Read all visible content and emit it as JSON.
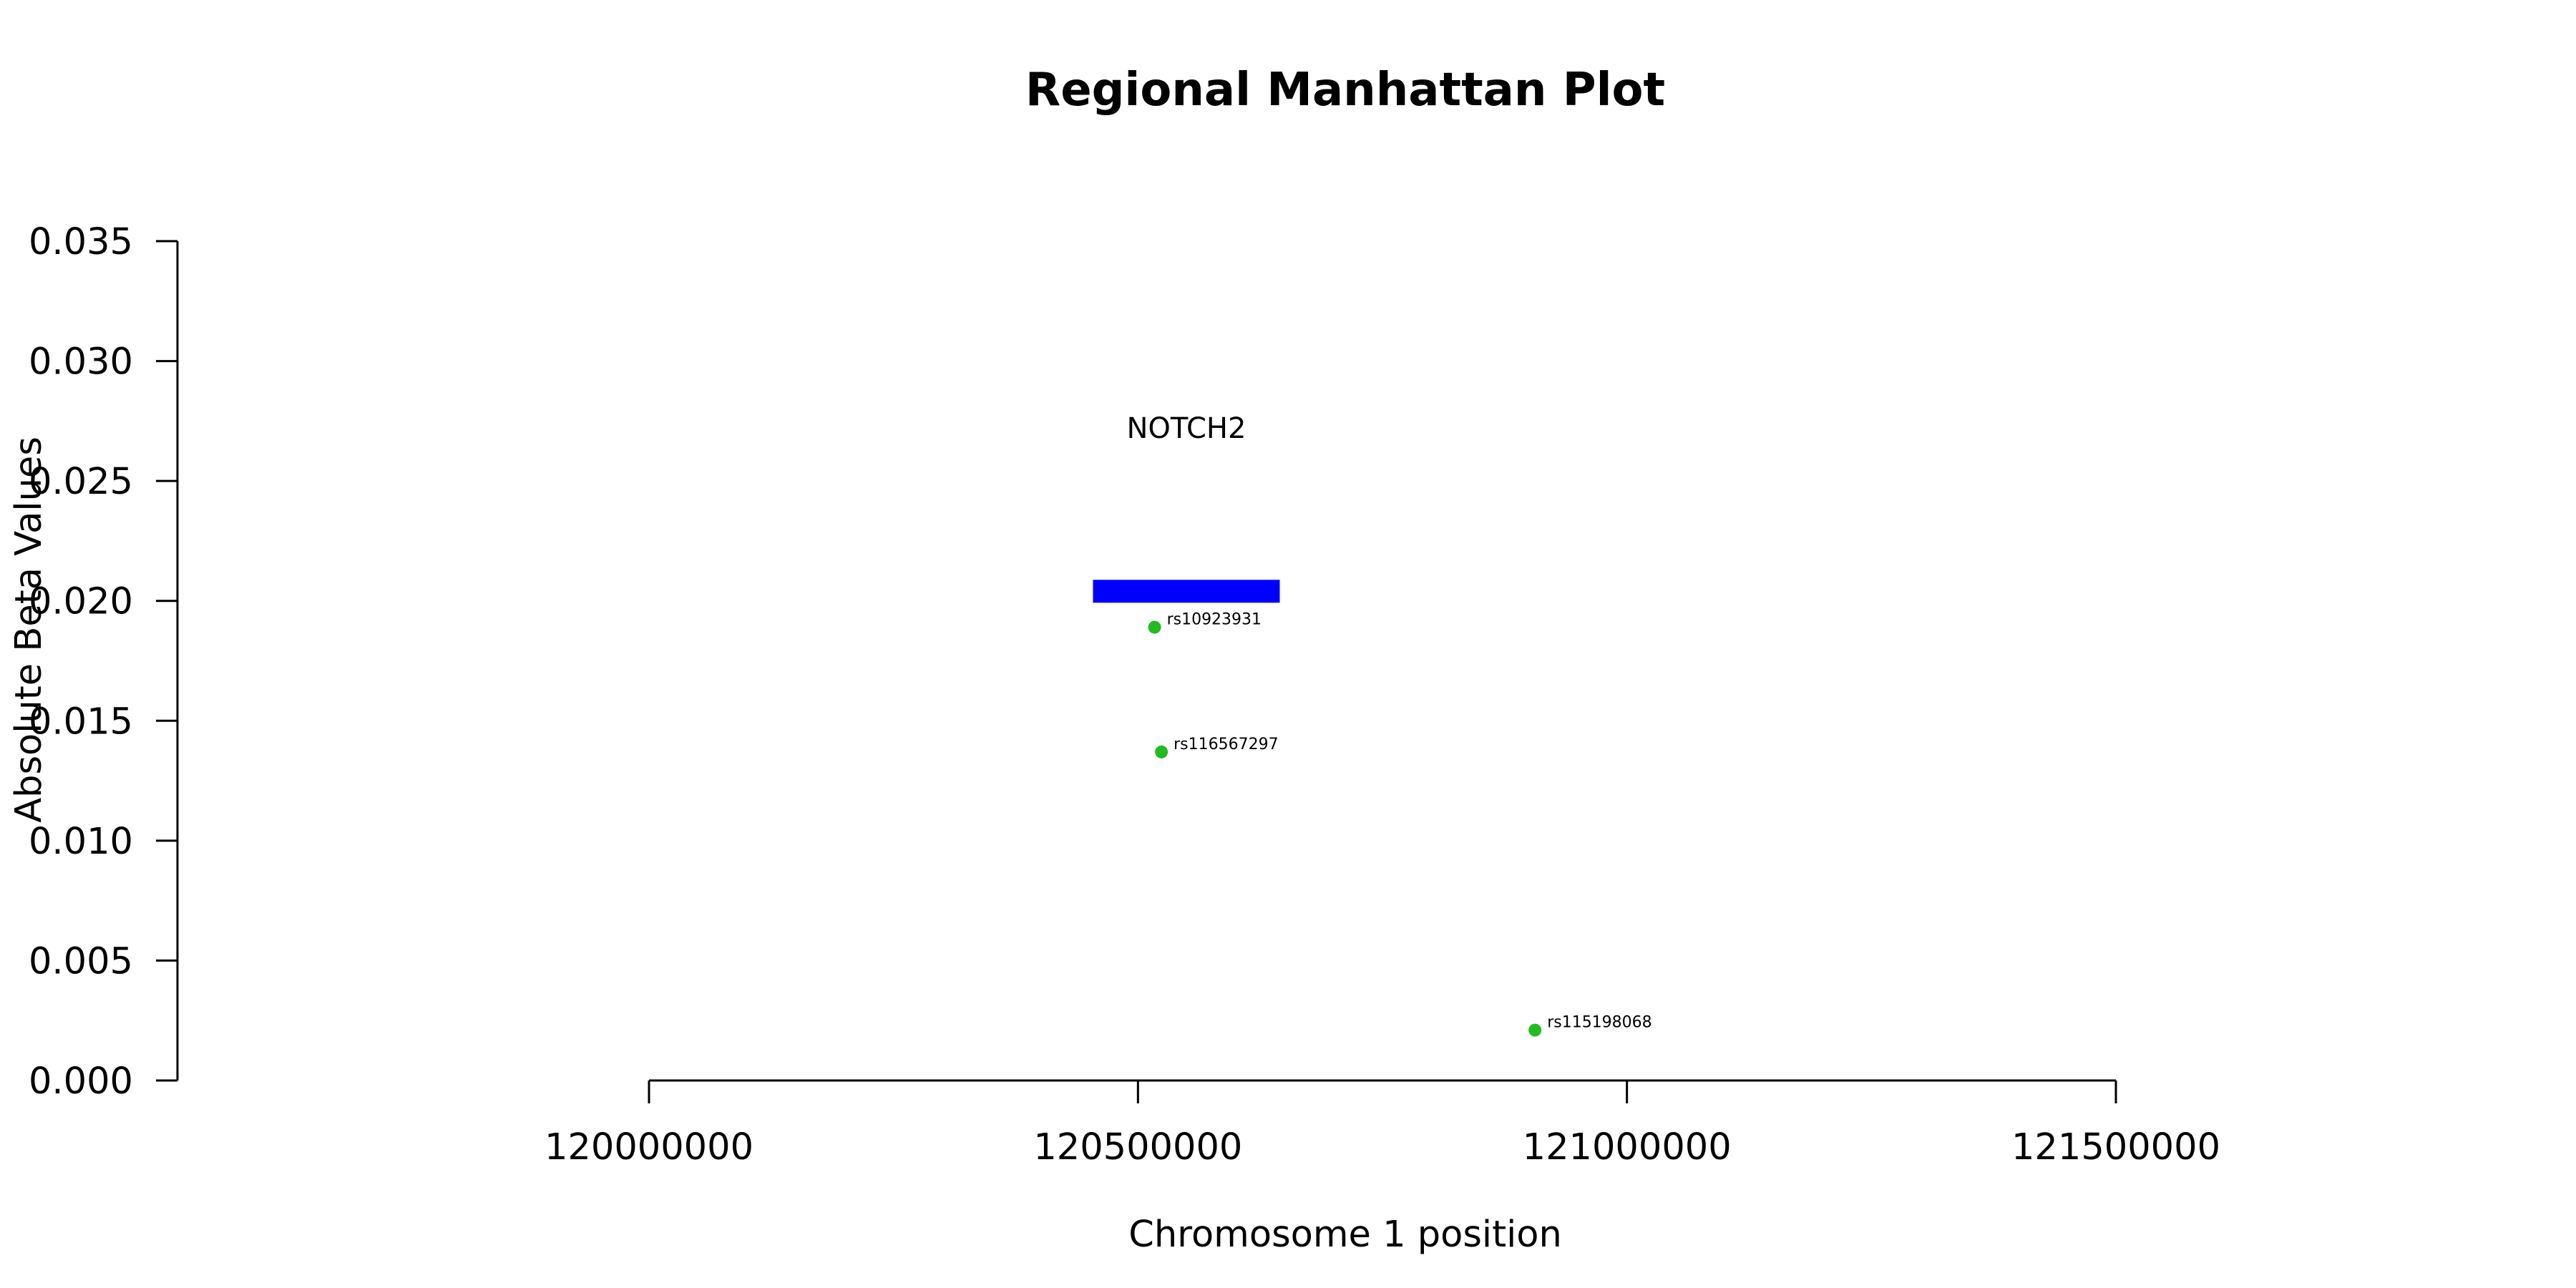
{
  "chart_data": {
    "type": "scatter",
    "title": "Regional Manhattan Plot",
    "xlabel": "Chromosome 1 position",
    "ylabel": "Absolute Beta Values",
    "x_ticks": [
      120000000,
      120500000,
      121000000,
      121500000
    ],
    "x_tick_labels": [
      "120000000",
      "120500000",
      "121000000",
      "121500000"
    ],
    "y_ticks": [
      0,
      0.005,
      0.01,
      0.015,
      0.02,
      0.025,
      0.03,
      0.035
    ],
    "y_tick_labels": [
      "0.000",
      "0.005",
      "0.010",
      "0.015",
      "0.020",
      "0.025",
      "0.030",
      "0.035"
    ],
    "xlim": [
      120000000,
      121500000
    ],
    "ylim": [
      0,
      0.035
    ],
    "grid": false,
    "points": [
      {
        "id": "rs10923931",
        "x": 120517000,
        "y": 0.0189,
        "color": "#22bb22"
      },
      {
        "id": "rs116567297",
        "x": 120524000,
        "y": 0.0137,
        "color": "#22bb22"
      },
      {
        "id": "rs115198068",
        "x": 120906000,
        "y": 0.0021,
        "color": "#22bb22"
      }
    ],
    "genes": [
      {
        "name": "NOTCH2",
        "start": 120454000,
        "end": 120645000,
        "y": 0.0204,
        "color": "#0000ff"
      }
    ]
  }
}
